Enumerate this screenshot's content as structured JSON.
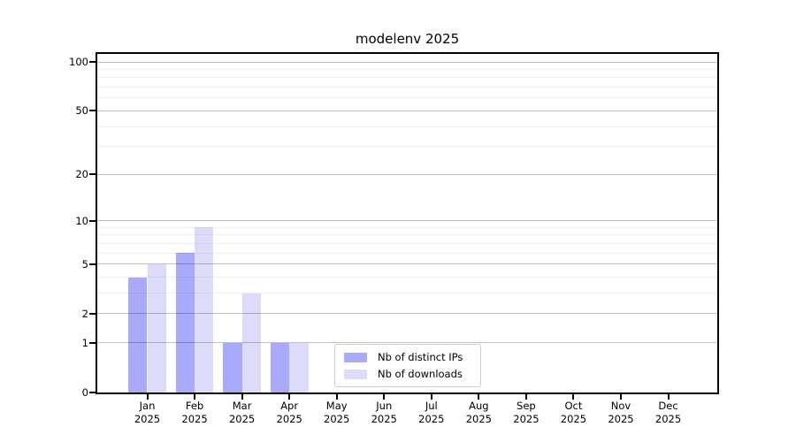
{
  "chart_data": {
    "type": "bar",
    "title": "modelenv 2025",
    "categories": [
      "Jan",
      "Feb",
      "Mar",
      "Apr",
      "May",
      "Jun",
      "Jul",
      "Aug",
      "Sep",
      "Oct",
      "Nov",
      "Dec"
    ],
    "category_year": "2025",
    "series": [
      {
        "name": "Nb of distinct IPs",
        "color": "#aaaafa",
        "values": [
          4,
          6,
          1,
          1,
          0,
          0,
          0,
          0,
          0,
          0,
          0,
          0
        ]
      },
      {
        "name": "Nb of downloads",
        "color": "#dcdcfa",
        "values": [
          5,
          9,
          3,
          1,
          0,
          0,
          0,
          0,
          0,
          0,
          0,
          0
        ]
      }
    ],
    "yscale": "log1p",
    "ylim": [
      0,
      112
    ],
    "y_major_ticks": [
      0,
      1,
      2,
      5,
      10,
      20,
      50,
      100
    ],
    "y_minor_ticks": [
      3,
      4,
      6,
      7,
      8,
      9,
      30,
      40,
      60,
      70,
      80,
      90
    ],
    "grid": true,
    "legend_position": "lower-center"
  },
  "style": {
    "background": "#ffffff",
    "spine_color": "#000000",
    "grid_major_color": "rgba(0,0,0,0.24)",
    "grid_minor_color": "rgba(0,0,0,0.06)",
    "text_color": "#000000",
    "legend_border_color": "#cccccc"
  }
}
